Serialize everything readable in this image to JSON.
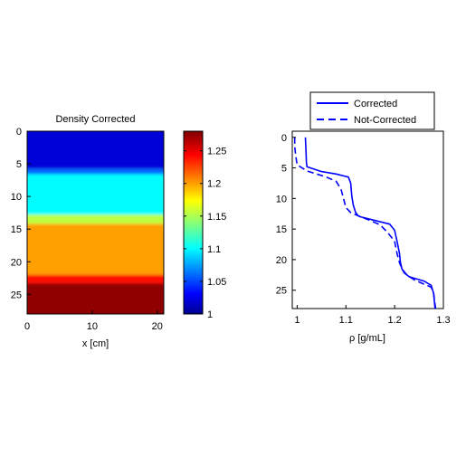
{
  "colors": {
    "corrected_line": "#0000ff",
    "not_corrected_line": "#0000ff",
    "axis": "#000000"
  },
  "chart_data": [
    {
      "type": "heatmap",
      "title": "Density Corrected",
      "xlabel": "x [cm]",
      "ylabel": "",
      "xlim": [
        0,
        21
      ],
      "ylim": [
        28,
        0
      ],
      "xticks": [
        0,
        10,
        20
      ],
      "yticks": [
        0,
        5,
        10,
        15,
        20,
        25
      ],
      "colormap": "jet",
      "grid": false,
      "depth_bands": [
        {
          "from": 0,
          "to": 5.8,
          "value": 1.02
        },
        {
          "from": 5.8,
          "to": 6.6,
          "value": 1.06
        },
        {
          "from": 6.6,
          "to": 12.8,
          "value": 1.1
        },
        {
          "from": 12.8,
          "to": 14.2,
          "value": 1.155
        },
        {
          "from": 14.2,
          "to": 22.0,
          "value": 1.2
        },
        {
          "from": 22.0,
          "to": 23.3,
          "value": 1.24
        },
        {
          "from": 23.3,
          "to": 28,
          "value": 1.275
        }
      ]
    },
    {
      "type": "colorbar",
      "range": [
        1,
        1.28
      ],
      "ticks": [
        "1",
        "1.05",
        "1.1",
        "1.15",
        "1.2",
        "1.25"
      ]
    },
    {
      "type": "line",
      "title": "",
      "xlabel": "ρ [g/mL]",
      "ylabel": "",
      "xlim": [
        0.99,
        1.3
      ],
      "ylim": [
        28,
        -1
      ],
      "xticks": [
        "1",
        "1.1",
        "1.2",
        "1.3"
      ],
      "yticks": [
        "0",
        "5",
        "10",
        "15",
        "20",
        "25"
      ],
      "legend_position": "top",
      "grid": false,
      "series": [
        {
          "name": "Corrected",
          "style": "solid",
          "x": [
            1.017,
            1.018,
            1.019,
            1.02,
            1.05,
            1.08,
            1.105,
            1.11,
            1.112,
            1.115,
            1.12,
            1.125,
            1.13,
            1.16,
            1.19,
            1.2,
            1.205,
            1.21,
            1.212,
            1.215,
            1.22,
            1.23,
            1.26,
            1.275,
            1.28,
            1.283
          ],
          "y": [
            0,
            2.0,
            4.0,
            4.8,
            5.6,
            6.0,
            6.5,
            7.5,
            9.5,
            11.0,
            12.3,
            12.8,
            13.0,
            13.6,
            14.2,
            15.2,
            17.0,
            19.0,
            20.5,
            21.5,
            22.2,
            22.8,
            23.5,
            24.2,
            25.5,
            28
          ]
        },
        {
          "name": "Not-Corrected",
          "style": "dashed",
          "x": [
            0.995,
            0.995,
            0.997,
            1.0,
            1.02,
            1.04,
            1.06,
            1.08,
            1.09,
            1.095,
            1.1,
            1.11,
            1.13,
            1.15,
            1.17,
            1.185,
            1.2,
            1.205,
            1.21,
            1.215,
            1.225,
            1.24,
            1.26,
            1.275,
            1.28,
            1.284
          ],
          "y": [
            0,
            1.5,
            3.0,
            4.5,
            5.5,
            6.0,
            6.5,
            7.2,
            8.5,
            10.0,
            11.5,
            12.3,
            13.0,
            13.6,
            14.3,
            15.5,
            17.0,
            19.0,
            20.5,
            21.5,
            22.5,
            23.3,
            24.0,
            24.5,
            25.5,
            28
          ]
        }
      ]
    }
  ]
}
